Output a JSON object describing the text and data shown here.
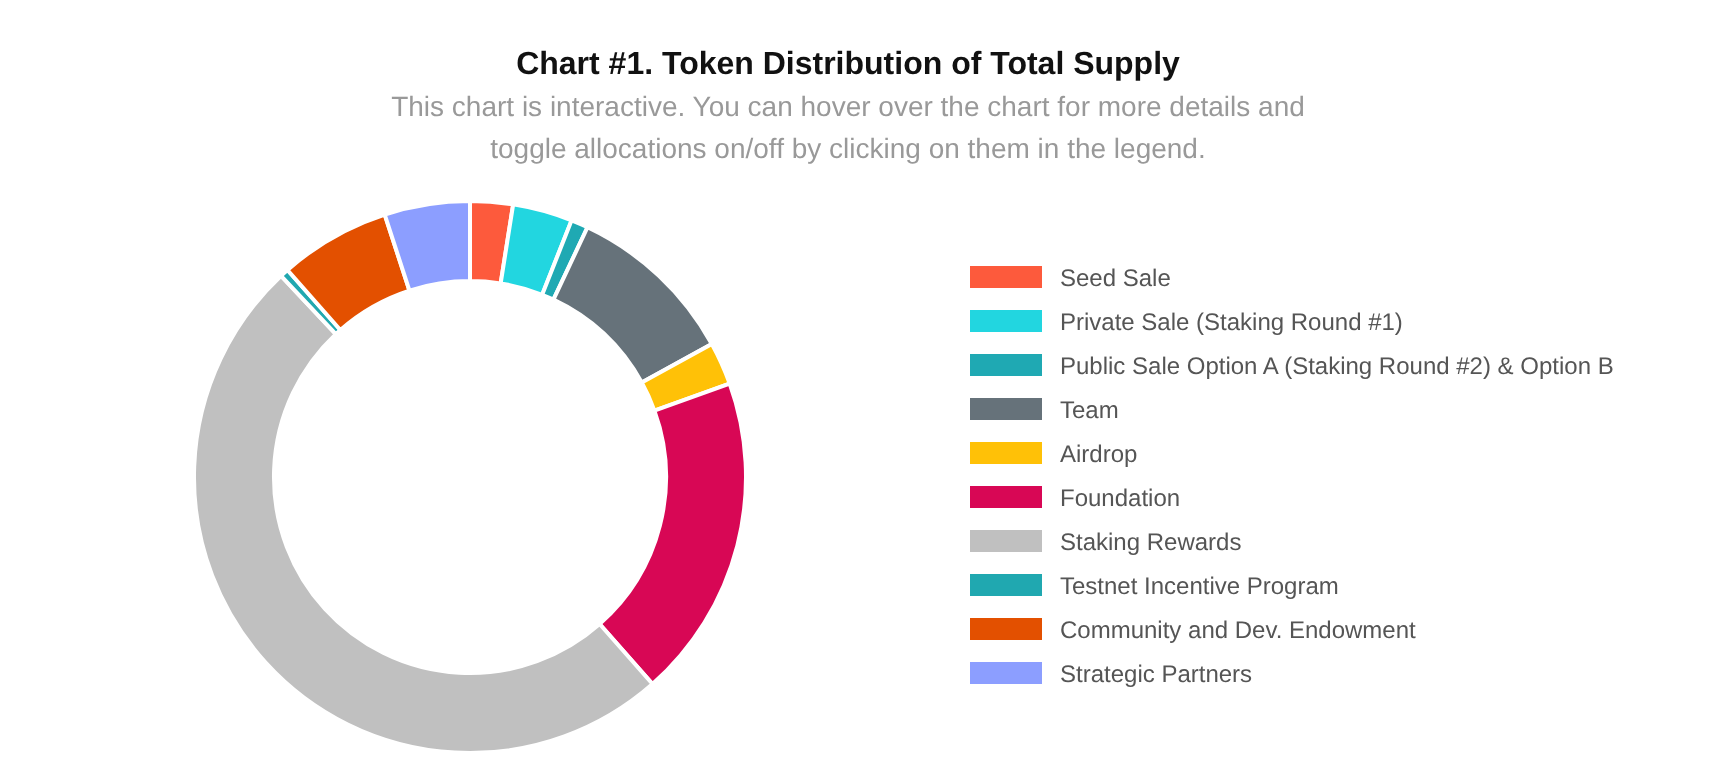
{
  "chart_data": {
    "type": "donut",
    "title": "Chart #1. Token Distribution of Total Supply",
    "subtitle": "This chart is interactive. You can hover over the chart for more details and toggle allocations on/off by clicking on them in the legend.",
    "legend": "right",
    "categories": [
      "Seed Sale",
      "Private Sale (Staking Round #1)",
      "Public Sale Option A (Staking Round #2) & Option B",
      "Team",
      "Airdrop",
      "Foundation",
      "Staking Rewards",
      "Testnet Incentive Program",
      "Community and Dev. Endowment",
      "Strategic Partners"
    ],
    "values": [
      2.5,
      3.5,
      1,
      10,
      2.5,
      19,
      49.5,
      0.5,
      6.5,
      5
    ],
    "colors": [
      "#fd5a3c",
      "#22d6e0",
      "#1fa9b3",
      "#66727a",
      "#ffc107",
      "#d80755",
      "#c0c0c0",
      "#20a8b0",
      "#e35000",
      "#8c9eff"
    ]
  }
}
